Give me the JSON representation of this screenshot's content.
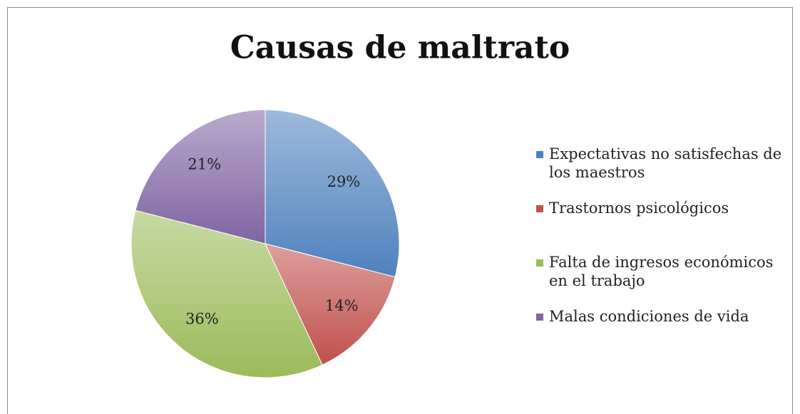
{
  "chart_data": {
    "type": "pie",
    "title": "Causas de maltrato",
    "categories": [
      "Expectativas no satisfechas de los maestros",
      "Trastornos psicológicos",
      "Falta de ingresos económicos en el trabajo",
      "Malas condiciones de vida"
    ],
    "values": [
      29,
      14,
      36,
      21
    ],
    "value_labels": [
      "29%",
      "14%",
      "36%",
      "21%"
    ],
    "colors": [
      "#4f81bd",
      "#c0504d",
      "#9bbb59",
      "#8064a2"
    ],
    "legend": "right"
  }
}
